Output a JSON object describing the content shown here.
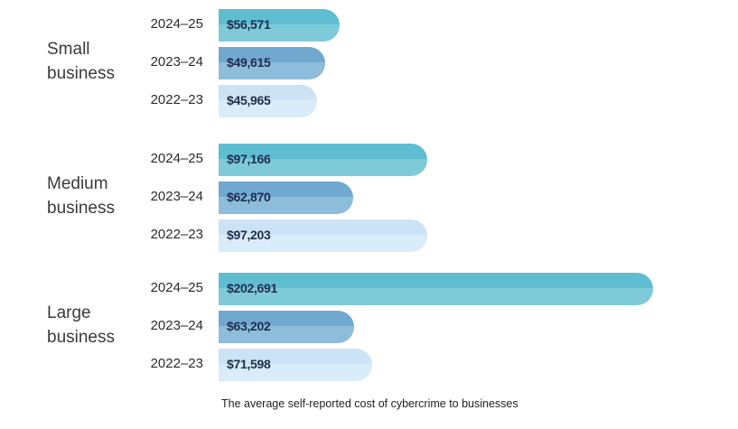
{
  "chart_data": {
    "type": "bar",
    "orientation": "horizontal",
    "title": "",
    "caption": "The average self-reported cost of cybercrime to businesses",
    "xlabel": "",
    "ylabel": "",
    "grid": false,
    "xlim": [
      0,
      202691
    ],
    "currency": "$",
    "year_colors": {
      "2024–25": {
        "top": "#5fbdd1",
        "bottom": "#7fcad8"
      },
      "2023–24": {
        "top": "#71a8d0",
        "bottom": "#8ebcdb"
      },
      "2022–23": {
        "top": "#cce3f5",
        "bottom": "#d9ecf9"
      }
    },
    "groups": [
      {
        "name": "Small business",
        "lines": [
          "Small",
          "business"
        ],
        "bars": [
          {
            "year": "2024–25",
            "value": 56571,
            "label": "$56,571"
          },
          {
            "year": "2023–24",
            "value": 49615,
            "label": "$49,615"
          },
          {
            "year": "2022–23",
            "value": 45965,
            "label": "$45,965"
          }
        ]
      },
      {
        "name": "Medium business",
        "lines": [
          "Medium",
          "business"
        ],
        "bars": [
          {
            "year": "2024–25",
            "value": 97166,
            "label": "$97,166"
          },
          {
            "year": "2023–24",
            "value": 62870,
            "label": "$62,870"
          },
          {
            "year": "2022–23",
            "value": 97203,
            "label": "$97,203"
          }
        ]
      },
      {
        "name": "Large business",
        "lines": [
          "Large",
          "business"
        ],
        "bars": [
          {
            "year": "2024–25",
            "value": 202691,
            "label": "$202,691"
          },
          {
            "year": "2023–24",
            "value": 63202,
            "label": "$63,202"
          },
          {
            "year": "2022–23",
            "value": 71598,
            "label": "$71,598"
          }
        ]
      }
    ]
  }
}
